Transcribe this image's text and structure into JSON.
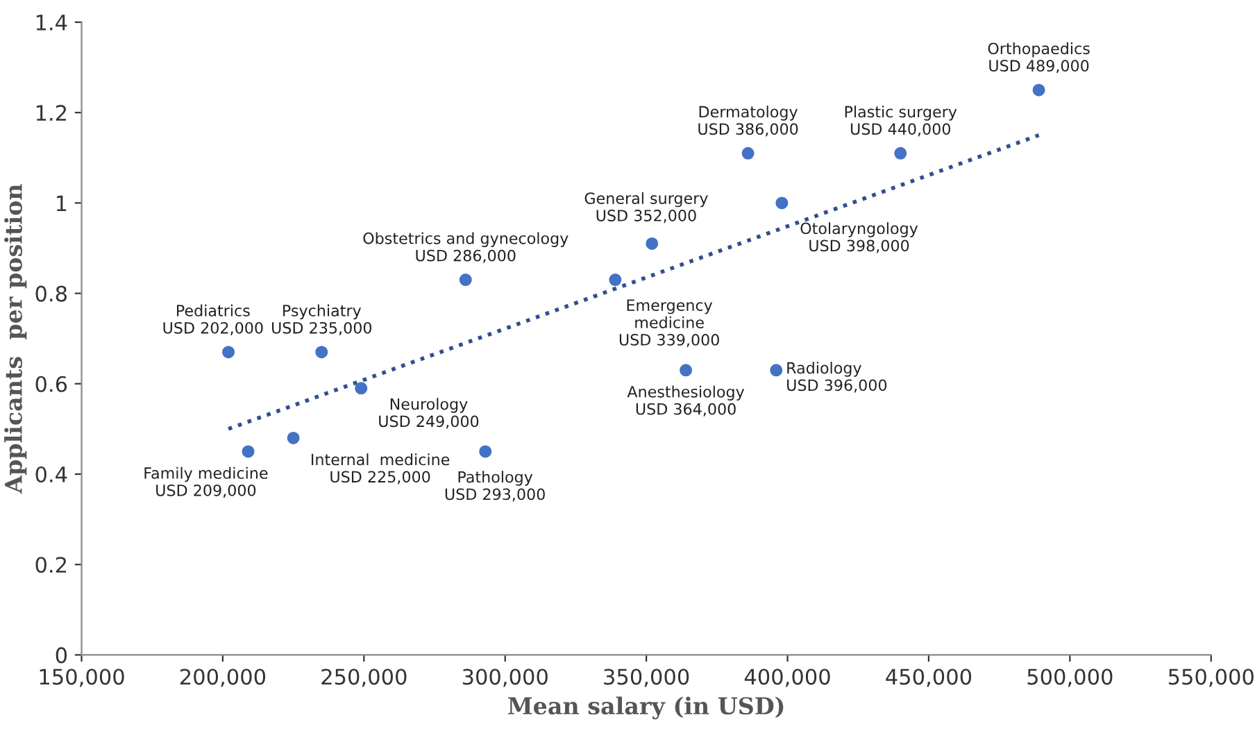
{
  "chart_data": {
    "type": "scatter",
    "xlabel": "Mean salary (in USD)",
    "ylabel": "Applicants  per position",
    "xlim": [
      150000,
      550000
    ],
    "ylim": [
      0,
      1.4
    ],
    "xticks": [
      {
        "value": 150000,
        "label": "150,000"
      },
      {
        "value": 200000,
        "label": "200,000"
      },
      {
        "value": 250000,
        "label": "250,000"
      },
      {
        "value": 300000,
        "label": "300,000"
      },
      {
        "value": 350000,
        "label": "350,000"
      },
      {
        "value": 400000,
        "label": "400,000"
      },
      {
        "value": 450000,
        "label": "450,000"
      },
      {
        "value": 500000,
        "label": "500,000"
      },
      {
        "value": 550000,
        "label": "550,000"
      }
    ],
    "yticks": [
      0,
      0.2,
      0.4,
      0.6,
      0.8,
      1,
      1.2,
      1.4
    ],
    "grid": false,
    "marker": "circle",
    "series": [
      {
        "color": "#4472c4",
        "x": [
          202000,
          209000,
          225000,
          235000,
          249000,
          286000,
          293000,
          339000,
          352000,
          364000,
          386000,
          396000,
          398000,
          440000,
          489000
        ],
        "values": [
          0.67,
          0.45,
          0.48,
          0.67,
          0.59,
          0.83,
          0.45,
          0.83,
          0.91,
          0.63,
          1.11,
          0.63,
          1.0,
          1.11,
          1.25
        ]
      },
      {
        "type": "line",
        "color": "#2f4f8f",
        "line_style": "dotted",
        "marker": "none",
        "x": [
          202000,
          489000
        ],
        "values": [
          0.5,
          1.15
        ]
      }
    ],
    "annotations": [
      {
        "text": "Pediatrics\nUSD 202,000",
        "x": 202000,
        "y": 0.67
      },
      {
        "text": "Family medicine\nUSD 209,000",
        "x": 209000,
        "y": 0.45
      },
      {
        "text": "Internal  medicine\nUSD 225,000",
        "x": 225000,
        "y": 0.48
      },
      {
        "text": "Psychiatry\nUSD 235,000",
        "x": 235000,
        "y": 0.67
      },
      {
        "text": "Neurology\nUSD 249,000",
        "x": 249000,
        "y": 0.59
      },
      {
        "text": "Obstetrics and gynecology\nUSD 286,000",
        "x": 286000,
        "y": 0.83
      },
      {
        "text": "Pathology\nUSD 293,000",
        "x": 293000,
        "y": 0.45
      },
      {
        "text": "Emergency\nmedicine\nUSD 339,000",
        "x": 339000,
        "y": 0.83
      },
      {
        "text": "General surgery\nUSD 352,000",
        "x": 352000,
        "y": 0.91
      },
      {
        "text": "Anesthesiology\nUSD 364,000",
        "x": 364000,
        "y": 0.63
      },
      {
        "text": "Dermatology\nUSD 386,000",
        "x": 386000,
        "y": 1.11
      },
      {
        "text": "Radiology\nUSD 396,000",
        "x": 396000,
        "y": 0.63
      },
      {
        "text": "Otolaryngology\nUSD 398,000",
        "x": 398000,
        "y": 1.0
      },
      {
        "text": "Plastic surgery\nUSD 440,000",
        "x": 440000,
        "y": 1.11
      },
      {
        "text": "Orthopaedics\nUSD 489,000",
        "x": 489000,
        "y": 1.25
      }
    ]
  }
}
